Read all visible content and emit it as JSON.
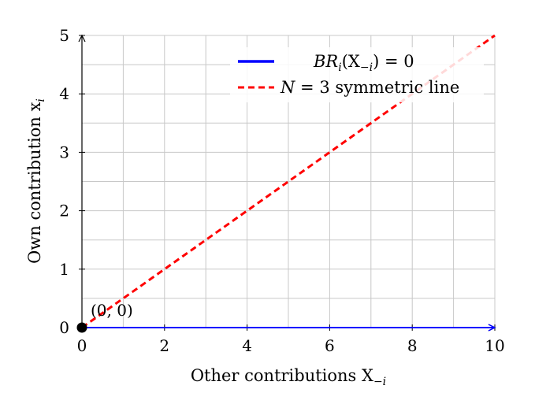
{
  "chart_data": {
    "type": "line",
    "xlabel": "Other contributions X",
    "xlabel_sub": "−i",
    "ylabel": "Own contribution x",
    "ylabel_sub": "i",
    "xlim": [
      0,
      10
    ],
    "ylim": [
      0,
      5
    ],
    "x_ticks": [
      0,
      2,
      4,
      6,
      8,
      10
    ],
    "y_ticks": [
      0,
      1,
      2,
      3,
      4,
      5
    ],
    "grid": true,
    "legend_position": "top-right",
    "series": [
      {
        "name": "BR_i(X_{-i}) = 0",
        "legend_parts": {
          "br": "BR",
          "br_sub": "i",
          "open": "(X",
          "sub": "−i",
          "close": ") = 0"
        },
        "style": "solid",
        "color": "#0000ff",
        "x": [
          0,
          10
        ],
        "y": [
          0,
          0
        ]
      },
      {
        "name": "N = 3 symmetric line",
        "legend_parts": {
          "n": "N",
          "rest": " = 3 symmetric line"
        },
        "style": "dashed",
        "color": "#ff0000",
        "x": [
          0,
          10
        ],
        "y": [
          0,
          5
        ]
      }
    ],
    "points": [
      {
        "x": 0,
        "y": 0,
        "label": "(0, 0)",
        "color": "#000000"
      }
    ]
  }
}
